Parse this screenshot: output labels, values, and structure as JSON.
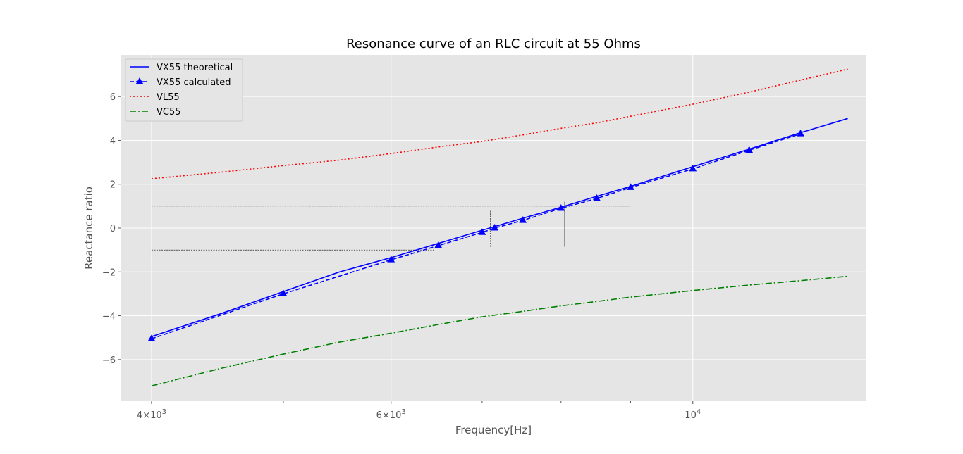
{
  "chart_data": {
    "type": "line",
    "title": "Resonance curve of an RLC circuit at 55 Ohms",
    "xlabel": "Frequency[Hz]",
    "ylabel": "Reactance ratio",
    "xscale": "log",
    "xlim": [
      3800,
      13400
    ],
    "ylim": [
      -7.9,
      7.9
    ],
    "grid": true,
    "legend_position": "top-left",
    "style": "ggplot",
    "x_ticks": [
      {
        "value": 4000,
        "base": "4×10",
        "exp": "3"
      },
      {
        "value": 6000,
        "base": "6×10",
        "exp": "3"
      },
      {
        "value": 10000,
        "base": "10",
        "exp": "4"
      }
    ],
    "x_minor_ticks": [
      5000,
      7000,
      8000,
      9000
    ],
    "y_ticks": [
      {
        "value": -6,
        "label": "−6"
      },
      {
        "value": -4,
        "label": "−4"
      },
      {
        "value": -2,
        "label": "−2"
      },
      {
        "value": 0,
        "label": "0"
      },
      {
        "value": 2,
        "label": "2"
      },
      {
        "value": 4,
        "label": "4"
      },
      {
        "value": 6,
        "label": "6"
      }
    ],
    "series": [
      {
        "name": "VX55 theoretical",
        "color": "#0000ff",
        "linestyle": "solid",
        "marker": "none",
        "x": [
          4000,
          4500,
          5000,
          5500,
          6000,
          6500,
          7000,
          7500,
          8000,
          8500,
          9000,
          10000,
          11000,
          12000,
          13000
        ],
        "y": [
          -4.95,
          -3.9,
          -2.9,
          -2.0,
          -1.35,
          -0.7,
          -0.1,
          0.45,
          0.95,
          1.45,
          1.9,
          2.8,
          3.6,
          4.35,
          5.0
        ]
      },
      {
        "name": "VX55 calculated",
        "color": "#0000ff",
        "linestyle": "dashed",
        "marker": "triangle",
        "x": [
          4000,
          5000,
          6000,
          6500,
          7000,
          7150,
          7500,
          8000,
          8500,
          9000,
          10000,
          11000,
          12000
        ],
        "y": [
          -5.05,
          -3.0,
          -1.45,
          -0.8,
          -0.2,
          0.0,
          0.35,
          0.9,
          1.35,
          1.85,
          2.7,
          3.55,
          4.3
        ]
      },
      {
        "name": "VL55",
        "color": "#ff0000",
        "linestyle": "dotted",
        "marker": "none",
        "x": [
          4000,
          4500,
          5000,
          5500,
          6000,
          6500,
          7000,
          7500,
          8000,
          8500,
          9000,
          10000,
          11000,
          12000,
          13000
        ],
        "y": [
          2.25,
          2.55,
          2.85,
          3.1,
          3.4,
          3.7,
          3.95,
          4.25,
          4.55,
          4.8,
          5.1,
          5.65,
          6.2,
          6.75,
          7.25
        ]
      },
      {
        "name": "VC55",
        "color": "#008000",
        "linestyle": "dashdot",
        "marker": "none",
        "x": [
          4000,
          4500,
          5000,
          5500,
          6000,
          6500,
          7000,
          7500,
          8000,
          8500,
          9000,
          10000,
          11000,
          12000,
          13000
        ],
        "y": [
          -7.2,
          -6.4,
          -5.75,
          -5.2,
          -4.8,
          -4.4,
          -4.05,
          -3.8,
          -3.55,
          -3.35,
          -3.15,
          -2.85,
          -2.6,
          -2.4,
          -2.2
        ]
      }
    ],
    "reference_lines": {
      "horizontal": [
        {
          "y": 1.0,
          "x_from": 4000,
          "x_to": 9000,
          "style": "dashed"
        },
        {
          "y": 0.5,
          "x_from": 4000,
          "x_to": 9000,
          "style": "solid"
        },
        {
          "y": -1.0,
          "x_from": 4000,
          "x_to": 6450,
          "style": "dashed"
        }
      ],
      "vertical": [
        {
          "x": 6270,
          "y_from": -1.25,
          "y_to": -0.4,
          "style": "solid"
        },
        {
          "x": 7100,
          "y_from": -0.85,
          "y_to": 0.8,
          "style": "dashed"
        },
        {
          "x": 8050,
          "y_from": -0.85,
          "y_to": 1.2,
          "style": "solid"
        }
      ]
    }
  }
}
